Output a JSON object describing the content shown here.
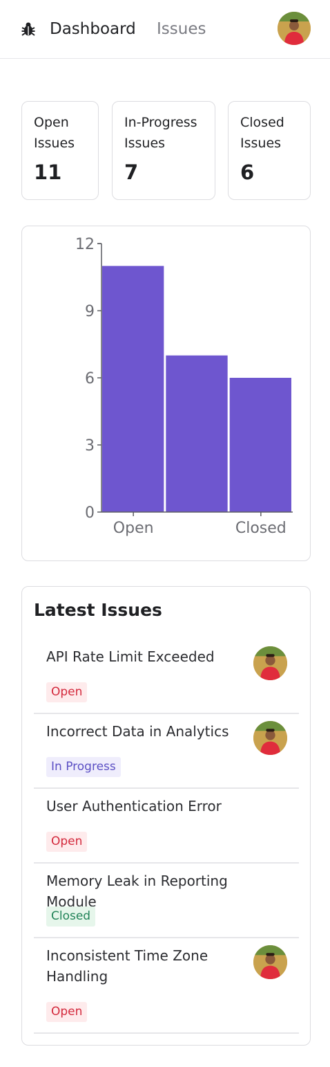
{
  "nav": {
    "logo_icon": "bug-icon",
    "links": [
      {
        "label": "Dashboard",
        "active": true
      },
      {
        "label": "Issues",
        "active": false
      }
    ],
    "avatar_icon": "user-avatar"
  },
  "stats": [
    {
      "label": "Open Issues",
      "value": "11"
    },
    {
      "label": "In-Progress Issues",
      "value": "7"
    },
    {
      "label": "Closed Issues",
      "value": "6"
    }
  ],
  "chart_data": {
    "type": "bar",
    "categories": [
      "Open",
      "In Progress",
      "Closed"
    ],
    "values": [
      11,
      7,
      6
    ],
    "visible_x_tick_labels": [
      "Open",
      "",
      "Closed"
    ],
    "y_ticks": [
      "0",
      "3",
      "6",
      "9",
      "12"
    ],
    "ylim": [
      0,
      12
    ],
    "bar_color": "#6e56cf",
    "grid": false
  },
  "latest": {
    "title": "Latest Issues",
    "issues": [
      {
        "title": "API Rate Limit Exceeded",
        "status": "Open",
        "has_avatar": true
      },
      {
        "title": "Incorrect Data in Analytics",
        "status": "In Progress",
        "has_avatar": true
      },
      {
        "title": "User Authentication Error",
        "status": "Open",
        "has_avatar": false
      },
      {
        "title": "Memory Leak in Reporting Module",
        "status": "Closed",
        "has_avatar": false
      },
      {
        "title": "Inconsistent Time Zone Handling",
        "status": "Open",
        "has_avatar": true
      }
    ]
  },
  "colors": {
    "accent": "#6e56cf",
    "open": "#d3283b",
    "in_progress": "#5b4fc4",
    "closed": "#218358"
  }
}
